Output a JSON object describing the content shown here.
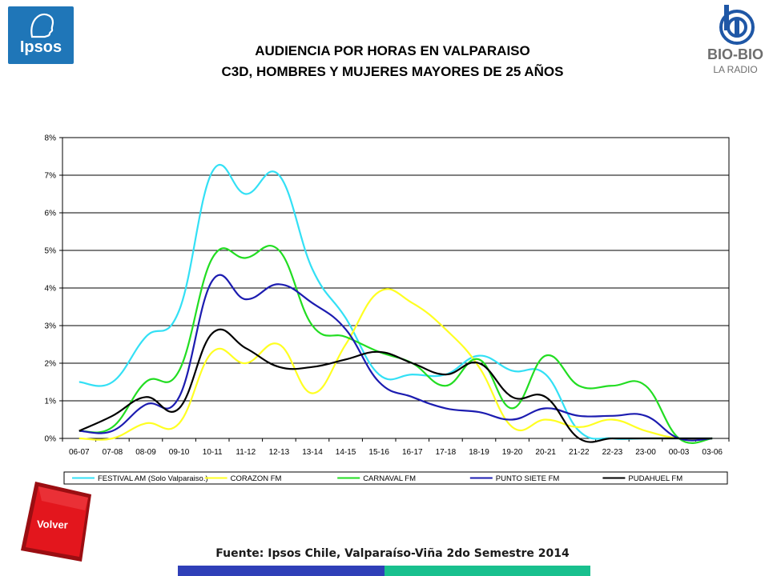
{
  "header": {
    "title_line1": "AUDIENCIA POR HORAS EN VALPARAISO",
    "title_line2": "C3D, HOMBRES Y MUJERES MAYORES DE 25 AÑOS"
  },
  "logos": {
    "left_brand": "Ipsos",
    "right_brand": "BIO-BIO",
    "right_sub": "LA RADIO"
  },
  "footer": {
    "source": "Fuente: Ipsos Chile, Valparaíso-Viña 2do Semestre 2014",
    "volver_label": "Volver"
  },
  "colors": {
    "ipsos_blue": "#1f76b8",
    "volver_red": "#e3161d",
    "bar_left": "#2f3fb8",
    "bar_right": "#19c08e"
  },
  "chart_data": {
    "type": "line",
    "categories": [
      "06-07",
      "07-08",
      "08-09",
      "09-10",
      "10-11",
      "11-12",
      "12-13",
      "13-14",
      "14-15",
      "15-16",
      "16-17",
      "17-18",
      "18-19",
      "19-20",
      "20-21",
      "21-22",
      "22-23",
      "23-00",
      "00-03",
      "03-06"
    ],
    "ylim": [
      0,
      8
    ],
    "yticks": [
      "0%",
      "1%",
      "2%",
      "3%",
      "4%",
      "5%",
      "6%",
      "7%",
      "8%"
    ],
    "grid": true,
    "legend_position": "bottom",
    "series": [
      {
        "name": "FESTIVAL AM (Solo Valparaiso.)",
        "color": "#33e0f5",
        "values": [
          1.5,
          1.5,
          2.7,
          3.4,
          7.1,
          6.5,
          7.0,
          4.5,
          3.2,
          1.7,
          1.7,
          1.7,
          2.2,
          1.8,
          1.7,
          0.2,
          0.0,
          0.0,
          0.0,
          0.0
        ]
      },
      {
        "name": "CORAZON FM",
        "color": "#ffff22",
        "values": [
          0.0,
          0.0,
          0.4,
          0.4,
          2.3,
          2.0,
          2.5,
          1.2,
          2.5,
          3.9,
          3.6,
          2.9,
          1.9,
          0.3,
          0.5,
          0.3,
          0.5,
          0.2,
          0.0,
          0.0
        ]
      },
      {
        "name": "CARNAVAL FM",
        "color": "#22dd22",
        "values": [
          0.2,
          0.3,
          1.5,
          1.8,
          4.8,
          4.8,
          5.0,
          3.0,
          2.7,
          2.3,
          2.0,
          1.4,
          2.1,
          0.8,
          2.2,
          1.4,
          1.4,
          1.4,
          0.0,
          0.0
        ]
      },
      {
        "name": "PUNTO SIETE FM",
        "color": "#1c1cb0",
        "values": [
          0.2,
          0.2,
          0.9,
          1.1,
          4.2,
          3.7,
          4.1,
          3.6,
          2.9,
          1.5,
          1.1,
          0.8,
          0.7,
          0.5,
          0.8,
          0.6,
          0.6,
          0.6,
          0.0,
          0.0
        ]
      },
      {
        "name": "PUDAHUEL FM",
        "color": "#000000",
        "values": [
          0.2,
          0.6,
          1.1,
          0.8,
          2.8,
          2.4,
          1.9,
          1.9,
          2.1,
          2.3,
          2.0,
          1.7,
          2.0,
          1.1,
          1.1,
          0.0,
          0.0,
          0.0,
          0.0,
          0.0
        ]
      }
    ]
  }
}
